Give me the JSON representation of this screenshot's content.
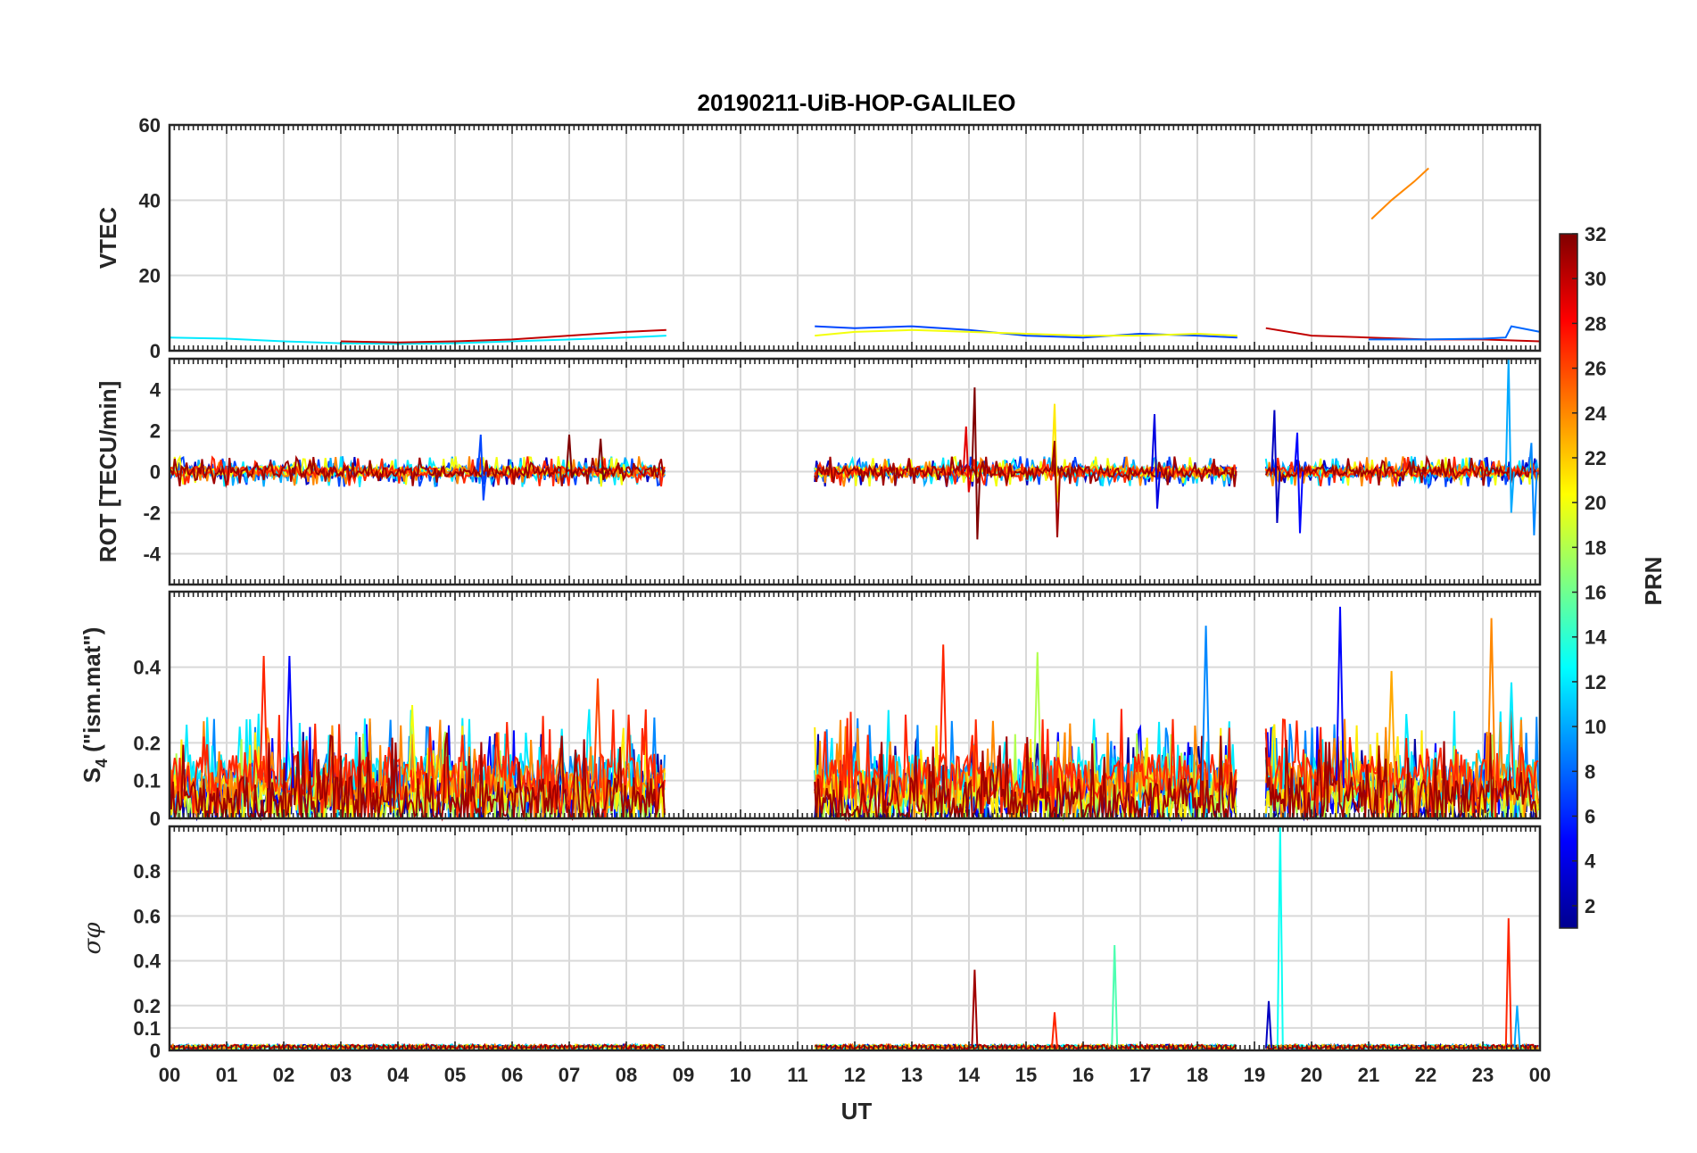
{
  "chart_data": {
    "type": "line",
    "title": "20190211-UiB-HOP-GALILEO",
    "xlabel": "UT",
    "x_tick_labels": [
      "00",
      "01",
      "02",
      "03",
      "04",
      "05",
      "06",
      "07",
      "08",
      "09",
      "10",
      "11",
      "12",
      "13",
      "14",
      "15",
      "16",
      "17",
      "18",
      "19",
      "20",
      "21",
      "22",
      "23",
      "00"
    ],
    "x_range_hours": [
      0,
      24
    ],
    "grid": true,
    "colorbar": {
      "label": "PRN",
      "range": [
        1,
        32
      ],
      "tick_labels": [
        "2",
        "4",
        "6",
        "8",
        "10",
        "12",
        "14",
        "16",
        "18",
        "20",
        "22",
        "24",
        "26",
        "28",
        "30",
        "32"
      ],
      "colormap": "jet"
    },
    "panels": [
      {
        "name": "vtec",
        "ylabel": "VTEC",
        "ylim": [
          0,
          60
        ],
        "y_tick_labels": [
          "0",
          "20",
          "40",
          "60"
        ],
        "series": [
          {
            "color_prn": 24,
            "x": [
              21.05,
              21.4,
              21.8,
              22.05
            ],
            "y": [
              35,
              40,
              45,
              48.5
            ]
          },
          {
            "color_prn": 12,
            "x": [
              0,
              1,
              2,
              3,
              4,
              5,
              6,
              7,
              8,
              8.7
            ],
            "y": [
              3.5,
              3.2,
              2.5,
              2.0,
              1.8,
              2.0,
              2.5,
              3.0,
              3.5,
              4.0
            ]
          },
          {
            "color_prn": 30,
            "x": [
              3,
              4,
              5,
              6,
              7,
              8,
              8.7
            ],
            "y": [
              2.5,
              2.2,
              2.5,
              3.0,
              4.0,
              5.0,
              5.5
            ]
          },
          {
            "color_prn": 7,
            "x": [
              11.3,
              12,
              13,
              14,
              15,
              16,
              17,
              18,
              18.7
            ],
            "y": [
              6.5,
              6.0,
              6.5,
              5.5,
              4.0,
              3.5,
              4.5,
              4.0,
              3.5
            ]
          },
          {
            "color_prn": 20,
            "x": [
              11.3,
              12,
              13,
              14,
              15,
              16,
              17,
              18,
              18.7
            ],
            "y": [
              4.0,
              5.0,
              5.5,
              5.0,
              4.5,
              4.0,
              4.0,
              4.5,
              4.0
            ]
          },
          {
            "color_prn": 30,
            "x": [
              19.2,
              20,
              21,
              22,
              23,
              24
            ],
            "y": [
              6.0,
              4.0,
              3.5,
              3.0,
              3.0,
              2.5
            ]
          },
          {
            "color_prn": 8,
            "x": [
              21,
              22,
              23,
              23.4,
              23.5,
              24
            ],
            "y": [
              3.0,
              3.0,
              3.2,
              3.5,
              6.5,
              5.0
            ]
          }
        ]
      },
      {
        "name": "rot",
        "ylabel": "ROT [TECU/min]",
        "ylim": [
          -5.5,
          5.5
        ],
        "y_tick_labels": [
          "-4",
          "-2",
          "0",
          "2",
          "4"
        ],
        "series": [
          {
            "color_prn": 31,
            "x": [
              0,
              1,
              2,
              3,
              4,
              5,
              6,
              7,
              8,
              8.7
            ],
            "y": [
              0,
              0,
              0,
              0,
              0,
              0,
              0,
              0,
              0,
              0
            ]
          }
        ],
        "spikes": [
          {
            "color_prn": 7,
            "x": 5.45,
            "ymax": 1.8,
            "ymin": -1.4
          },
          {
            "color_prn": 32,
            "x": 7.0,
            "ymax": 1.8,
            "ymin": -0.3
          },
          {
            "color_prn": 32,
            "x": 7.55,
            "ymax": 1.6,
            "ymin": -0.4
          },
          {
            "color_prn": 29,
            "x": 13.95,
            "ymax": 2.2,
            "ymin": -1.0
          },
          {
            "color_prn": 32,
            "x": 14.1,
            "ymax": 4.1,
            "ymin": -3.3
          },
          {
            "color_prn": 21,
            "x": 15.5,
            "ymax": 3.3,
            "ymin": -1.5
          },
          {
            "color_prn": 31,
            "x": 15.5,
            "ymax": 1.5,
            "ymin": -3.2
          },
          {
            "color_prn": 4,
            "x": 17.25,
            "ymax": 2.8,
            "ymin": -1.8
          },
          {
            "color_prn": 3,
            "x": 19.35,
            "ymax": 3.0,
            "ymin": -2.5
          },
          {
            "color_prn": 5,
            "x": 19.75,
            "ymax": 1.9,
            "ymin": -3.0
          },
          {
            "color_prn": 10,
            "x": 23.45,
            "ymax": 5.5,
            "ymin": -2.0
          },
          {
            "color_prn": 9,
            "x": 23.85,
            "ymax": 1.4,
            "ymin": -3.1
          }
        ]
      },
      {
        "name": "s4",
        "ylabel": "S4 (\"ism.mat\")",
        "ylabel_main": "S",
        "ylabel_sub": "4",
        "ylabel_rest": "(\"ism.mat\")",
        "ylim": [
          0,
          0.6
        ],
        "y_tick_labels": [
          "0",
          "0.1",
          "0.2",
          "0.4"
        ],
        "spikes": [
          {
            "color_prn": 27,
            "x": 1.65,
            "ymax": 0.43
          },
          {
            "color_prn": 5,
            "x": 2.1,
            "ymax": 0.43
          },
          {
            "color_prn": 20,
            "x": 4.25,
            "ymax": 0.3
          },
          {
            "color_prn": 26,
            "x": 7.5,
            "ymax": 0.37
          },
          {
            "color_prn": 27,
            "x": 13.55,
            "ymax": 0.46
          },
          {
            "color_prn": 18,
            "x": 15.2,
            "ymax": 0.44
          },
          {
            "color_prn": 9,
            "x": 18.15,
            "ymax": 0.51
          },
          {
            "color_prn": 5,
            "x": 20.5,
            "ymax": 0.56
          },
          {
            "color_prn": 23,
            "x": 21.4,
            "ymax": 0.39
          },
          {
            "color_prn": 24,
            "x": 23.15,
            "ymax": 0.53
          },
          {
            "color_prn": 12,
            "x": 23.5,
            "ymax": 0.36
          }
        ]
      },
      {
        "name": "sigma_phi",
        "ylabel": "σφ",
        "ylim": [
          0,
          1.0
        ],
        "y_tick_labels": [
          "0",
          "0.1",
          "0.2",
          "0.4",
          "0.6",
          "0.8"
        ],
        "spikes": [
          {
            "color_prn": 31,
            "x": 14.1,
            "ymax": 0.36
          },
          {
            "color_prn": 27,
            "x": 15.5,
            "ymax": 0.17
          },
          {
            "color_prn": 15,
            "x": 16.55,
            "ymax": 0.47
          },
          {
            "color_prn": 3,
            "x": 19.25,
            "ymax": 0.22
          },
          {
            "color_prn": 13,
            "x": 19.45,
            "ymax": 1.0
          },
          {
            "color_prn": 27,
            "x": 23.45,
            "ymax": 0.59
          },
          {
            "color_prn": 10,
            "x": 23.6,
            "ymax": 0.2
          }
        ]
      }
    ]
  }
}
